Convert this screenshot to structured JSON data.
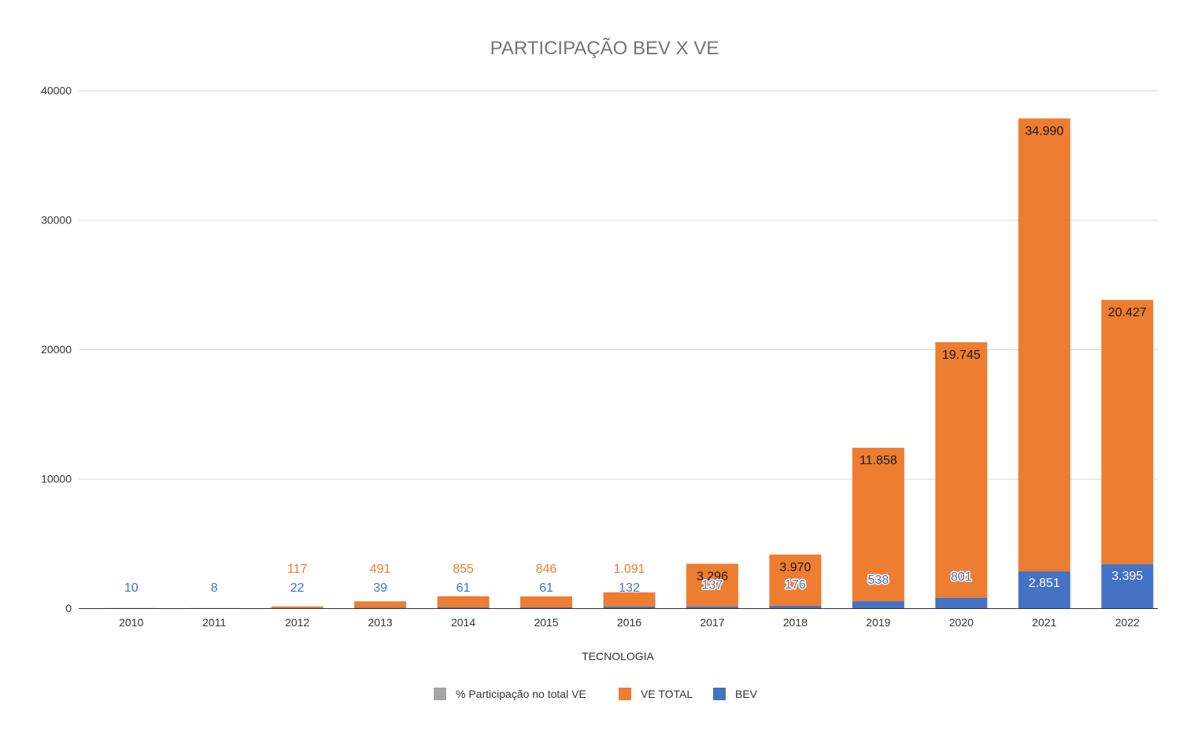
{
  "chart_data": {
    "type": "bar",
    "stacked": true,
    "title": "PARTICIPAÇÃO  BEV  X  VE",
    "xlabel": "TECNOLOGIA",
    "ylabel": "",
    "ylim": [
      0,
      40000
    ],
    "yticks": [
      "0",
      "10000",
      "20000",
      "30000",
      "40000"
    ],
    "categories": [
      "2010",
      "2011",
      "2012",
      "2013",
      "2014",
      "2015",
      "2016",
      "2017",
      "2018",
      "2019",
      "2020",
      "2021",
      "2022"
    ],
    "series": [
      {
        "name": "BEV",
        "color": "#4472c4",
        "values": [
          10,
          8,
          22,
          39,
          61,
          61,
          132,
          137,
          176,
          538,
          801,
          2851,
          3395
        ],
        "labels": [
          "10",
          "8",
          "22",
          "39",
          "61",
          "61",
          "132",
          "137",
          "176",
          "538",
          "801",
          "2.851",
          "3.395"
        ]
      },
      {
        "name": "VE TOTAL",
        "color": "#ed7d31",
        "values": [
          null,
          null,
          117,
          491,
          855,
          846,
          1091,
          3296,
          3970,
          11858,
          19745,
          34990,
          20427
        ],
        "labels": [
          "",
          "",
          "117",
          "491",
          "855",
          "846",
          "1.091",
          "3.296",
          "3.970",
          "11.858",
          "19.745",
          "34.990",
          "20.427"
        ]
      }
    ],
    "legend": [
      {
        "name": "% Participação no total VE",
        "color": "#a5a5a5"
      },
      {
        "name": "VE TOTAL",
        "color": "#ed7d31"
      },
      {
        "name": "BEV",
        "color": "#4472c4"
      }
    ],
    "legend_position": "bottom",
    "grid": true
  }
}
